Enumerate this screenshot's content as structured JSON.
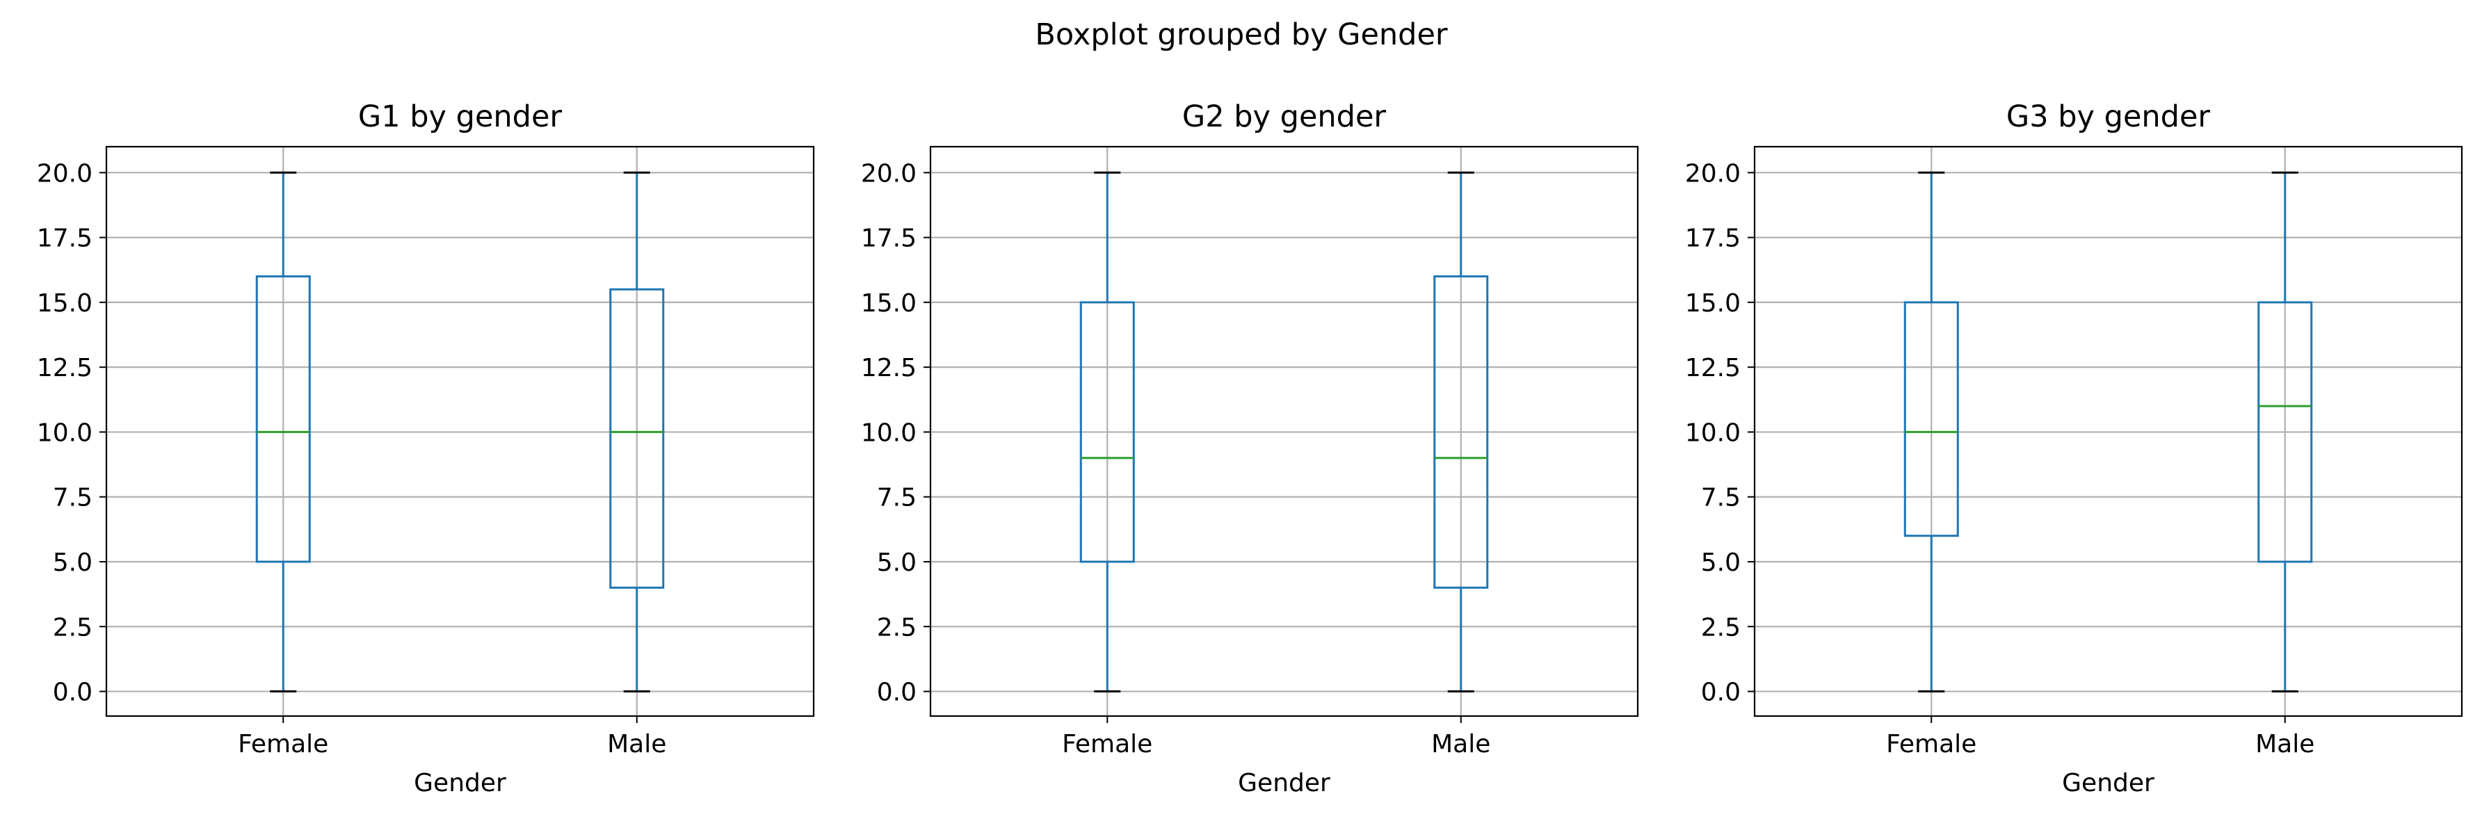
{
  "figure_title": "Boxplot grouped by Gender",
  "colors": {
    "box": "#1f77b4",
    "whisker": "#1f77b4",
    "cap": "#000000",
    "median": "#2ca02c",
    "grid": "#b0b0b0",
    "axes": "#000000"
  },
  "chart_data": [
    {
      "type": "boxplot",
      "title": "G1 by gender",
      "xlabel": "Gender",
      "ylabel": "",
      "ylim": [
        -0.95,
        21
      ],
      "yticks": [
        0.0,
        2.5,
        5.0,
        7.5,
        10.0,
        12.5,
        15.0,
        17.5,
        20.0
      ],
      "ytick_labels": [
        "0.0",
        "2.5",
        "5.0",
        "7.5",
        "10.0",
        "12.5",
        "15.0",
        "17.5",
        "20.0"
      ],
      "grid": true,
      "categories": [
        "Female",
        "Male"
      ],
      "boxes": [
        {
          "category": "Female",
          "whisker_low": 0,
          "q1": 5,
          "median": 10,
          "q3": 16,
          "whisker_high": 20
        },
        {
          "category": "Male",
          "whisker_low": 0,
          "q1": 4,
          "median": 10,
          "q3": 15.5,
          "whisker_high": 20
        }
      ]
    },
    {
      "type": "boxplot",
      "title": "G2 by gender",
      "xlabel": "Gender",
      "ylabel": "",
      "ylim": [
        -0.95,
        21
      ],
      "yticks": [
        0.0,
        2.5,
        5.0,
        7.5,
        10.0,
        12.5,
        15.0,
        17.5,
        20.0
      ],
      "ytick_labels": [
        "0.0",
        "2.5",
        "5.0",
        "7.5",
        "10.0",
        "12.5",
        "15.0",
        "17.5",
        "20.0"
      ],
      "grid": true,
      "categories": [
        "Female",
        "Male"
      ],
      "boxes": [
        {
          "category": "Female",
          "whisker_low": 0,
          "q1": 5,
          "median": 9,
          "q3": 15,
          "whisker_high": 20
        },
        {
          "category": "Male",
          "whisker_low": 0,
          "q1": 4,
          "median": 9,
          "q3": 16,
          "whisker_high": 20
        }
      ]
    },
    {
      "type": "boxplot",
      "title": "G3 by gender",
      "xlabel": "Gender",
      "ylabel": "",
      "ylim": [
        -0.95,
        21
      ],
      "yticks": [
        0.0,
        2.5,
        5.0,
        7.5,
        10.0,
        12.5,
        15.0,
        17.5,
        20.0
      ],
      "ytick_labels": [
        "0.0",
        "2.5",
        "5.0",
        "7.5",
        "10.0",
        "12.5",
        "15.0",
        "17.5",
        "20.0"
      ],
      "grid": true,
      "categories": [
        "Female",
        "Male"
      ],
      "boxes": [
        {
          "category": "Female",
          "whisker_low": 0,
          "q1": 6,
          "median": 10,
          "q3": 15,
          "whisker_high": 20
        },
        {
          "category": "Male",
          "whisker_low": 0,
          "q1": 5,
          "median": 11,
          "q3": 15,
          "whisker_high": 20
        }
      ]
    }
  ]
}
